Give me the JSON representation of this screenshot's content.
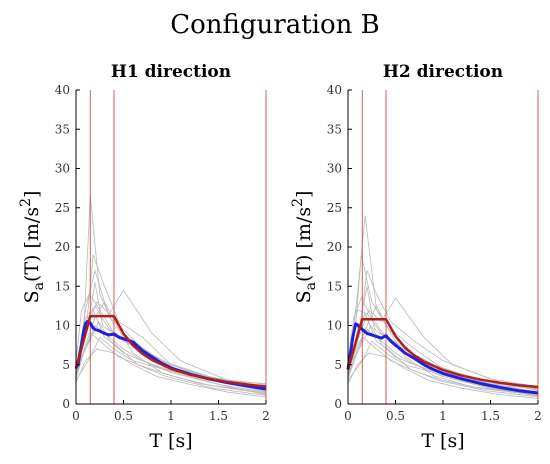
{
  "figure": {
    "title": "Configuration B"
  },
  "colors": {
    "records": "#b9b9b9",
    "mean": "#1f1fe0",
    "target": "#b21e1e",
    "period_bounds": "#d94a3a"
  },
  "chart_data": [
    {
      "type": "line",
      "title": "H1 direction",
      "xlabel": "T [s]",
      "ylabel": "S_a(T) [m/s^2]",
      "xlim": [
        0,
        2
      ],
      "ylim": [
        0,
        40
      ],
      "xticks": [
        0,
        0.5,
        1,
        1.5,
        2
      ],
      "xtick_labels": [
        "0",
        "0.5",
        "1",
        "1.5",
        "2"
      ],
      "yticks": [
        0,
        5,
        10,
        15,
        20,
        25,
        30,
        35,
        40
      ],
      "ytick_labels": [
        "0",
        "5",
        "10",
        "15",
        "20",
        "25",
        "30",
        "35",
        "40"
      ],
      "grid": false,
      "legend": "none",
      "vertical_lines": [
        0.15,
        0.4,
        2.0
      ],
      "series": [
        {
          "role": "target",
          "x": [
            0,
            0.15,
            0.4,
            0.5,
            0.6,
            0.7,
            0.8,
            1.0,
            1.2,
            1.4,
            1.6,
            1.8,
            2.0
          ],
          "y": [
            4.5,
            11.2,
            11.2,
            8.96,
            7.47,
            6.4,
            5.6,
            4.48,
            3.73,
            3.2,
            2.8,
            2.49,
            2.24
          ]
        },
        {
          "role": "mean",
          "x": [
            0,
            0.02,
            0.05,
            0.08,
            0.1,
            0.12,
            0.15,
            0.18,
            0.2,
            0.25,
            0.3,
            0.35,
            0.4,
            0.45,
            0.5,
            0.6,
            0.7,
            0.8,
            0.9,
            1.0,
            1.2,
            1.4,
            1.6,
            1.8,
            2.0
          ],
          "y": [
            4.6,
            5.0,
            7.0,
            9.2,
            10.2,
            10.5,
            10.3,
            9.7,
            9.5,
            9.3,
            9.0,
            8.8,
            8.9,
            8.5,
            8.3,
            7.9,
            6.8,
            6.0,
            5.2,
            4.6,
            3.8,
            3.2,
            2.7,
            2.3,
            1.9
          ]
        }
      ],
      "records": [
        {
          "x": [
            0,
            0.1,
            0.2,
            0.35,
            0.5,
            0.7,
            1.0,
            1.5,
            2.0
          ],
          "y": [
            4.0,
            12.0,
            17.0,
            11.0,
            9.5,
            7.0,
            5.0,
            3.0,
            2.0
          ]
        },
        {
          "x": [
            0,
            0.08,
            0.15,
            0.25,
            0.4,
            0.6,
            0.9,
            1.4,
            2.0
          ],
          "y": [
            3.5,
            9.0,
            26.5,
            14.0,
            10.0,
            8.0,
            5.5,
            3.5,
            2.2
          ]
        },
        {
          "x": [
            0,
            0.1,
            0.18,
            0.3,
            0.45,
            0.7,
            1.0,
            1.5,
            2.0
          ],
          "y": [
            4.5,
            8.5,
            19.0,
            15.0,
            10.5,
            8.5,
            5.0,
            2.8,
            1.8
          ]
        },
        {
          "x": [
            0,
            0.12,
            0.22,
            0.35,
            0.5,
            0.8,
            1.1,
            1.6,
            2.0
          ],
          "y": [
            3.8,
            10.0,
            13.0,
            11.5,
            14.5,
            9.0,
            5.5,
            3.0,
            2.0
          ]
        },
        {
          "x": [
            0,
            0.1,
            0.2,
            0.3,
            0.5,
            0.7,
            1.0,
            1.5,
            2.0
          ],
          "y": [
            4.2,
            7.0,
            10.0,
            9.0,
            7.0,
            5.5,
            4.0,
            2.5,
            1.5
          ]
        },
        {
          "x": [
            0,
            0.15,
            0.25,
            0.4,
            0.6,
            0.9,
            1.2,
            1.6,
            2.0
          ],
          "y": [
            3.0,
            6.0,
            8.5,
            7.0,
            5.5,
            4.5,
            3.5,
            2.2,
            1.2
          ]
        },
        {
          "x": [
            0,
            0.1,
            0.2,
            0.35,
            0.55,
            0.8,
            1.1,
            1.5,
            2.0
          ],
          "y": [
            5.0,
            11.0,
            12.5,
            9.5,
            8.0,
            6.0,
            4.0,
            2.8,
            1.6
          ]
        },
        {
          "x": [
            0,
            0.08,
            0.16,
            0.3,
            0.45,
            0.7,
            1.0,
            1.4,
            2.0
          ],
          "y": [
            3.2,
            6.5,
            9.0,
            7.5,
            6.0,
            4.8,
            3.6,
            2.4,
            1.3
          ]
        },
        {
          "x": [
            0,
            0.12,
            0.2,
            0.28,
            0.5,
            0.75,
            1.05,
            1.5,
            2.0
          ],
          "y": [
            4.0,
            9.5,
            15.5,
            10.0,
            8.0,
            6.5,
            4.5,
            3.2,
            2.5
          ]
        },
        {
          "x": [
            0,
            0.1,
            0.22,
            0.4,
            0.6,
            0.85,
            1.2,
            1.6,
            2.0
          ],
          "y": [
            2.8,
            5.5,
            7.0,
            6.5,
            5.0,
            3.5,
            2.5,
            1.5,
            0.9
          ]
        },
        {
          "x": [
            0,
            0.06,
            0.14,
            0.25,
            0.4,
            0.65,
            0.95,
            1.4,
            2.0
          ],
          "y": [
            5.5,
            12.0,
            14.0,
            12.0,
            9.0,
            7.0,
            4.5,
            3.0,
            2.3
          ]
        },
        {
          "x": [
            0,
            0.1,
            0.2,
            0.3,
            0.45,
            0.6,
            0.9,
            1.3,
            2.0
          ],
          "y": [
            3.6,
            7.5,
            11.0,
            13.0,
            9.5,
            6.5,
            4.0,
            2.6,
            1.4
          ]
        },
        {
          "x": [
            0,
            0.14,
            0.24,
            0.36,
            0.5,
            0.7,
            1.0,
            1.5,
            2.0
          ],
          "y": [
            4.8,
            8.0,
            10.5,
            8.0,
            6.5,
            5.5,
            4.2,
            3.0,
            2.6
          ]
        },
        {
          "x": [
            0,
            0.1,
            0.18,
            0.3,
            0.42,
            0.65,
            0.95,
            1.45,
            2.0
          ],
          "y": [
            3.3,
            10.5,
            12.0,
            8.5,
            7.5,
            5.0,
            3.5,
            2.0,
            1.1
          ]
        }
      ]
    },
    {
      "type": "line",
      "title": "H2 direction",
      "xlabel": "T [s]",
      "ylabel": "S_a(T) [m/s^2]",
      "xlim": [
        0,
        2
      ],
      "ylim": [
        0,
        40
      ],
      "xticks": [
        0,
        0.5,
        1,
        1.5,
        2
      ],
      "xtick_labels": [
        "0",
        "0.5",
        "1",
        "1.5",
        "2"
      ],
      "yticks": [
        0,
        5,
        10,
        15,
        20,
        25,
        30,
        35,
        40
      ],
      "ytick_labels": [
        "0",
        "5",
        "10",
        "15",
        "20",
        "25",
        "30",
        "35",
        "40"
      ],
      "grid": false,
      "legend": "none",
      "vertical_lines": [
        0.15,
        0.4,
        2.0
      ],
      "series": [
        {
          "role": "target",
          "x": [
            0,
            0.15,
            0.4,
            0.5,
            0.6,
            0.7,
            0.8,
            1.0,
            1.2,
            1.4,
            1.6,
            1.8,
            2.0
          ],
          "y": [
            4.4,
            10.8,
            10.8,
            8.64,
            7.2,
            6.17,
            5.4,
            4.32,
            3.6,
            3.09,
            2.7,
            2.4,
            2.16
          ]
        },
        {
          "role": "mean",
          "x": [
            0,
            0.02,
            0.05,
            0.08,
            0.1,
            0.12,
            0.15,
            0.18,
            0.2,
            0.25,
            0.3,
            0.35,
            0.4,
            0.45,
            0.5,
            0.6,
            0.7,
            0.8,
            0.9,
            1.0,
            1.2,
            1.4,
            1.6,
            1.8,
            2.0
          ],
          "y": [
            4.4,
            6.0,
            8.5,
            10.2,
            10.1,
            9.8,
            9.5,
            9.2,
            9.0,
            8.8,
            8.6,
            8.4,
            8.7,
            8.0,
            7.5,
            6.5,
            5.8,
            5.0,
            4.4,
            3.9,
            3.2,
            2.6,
            2.1,
            1.7,
            1.4
          ]
        }
      ],
      "records": [
        {
          "x": [
            0,
            0.1,
            0.18,
            0.3,
            0.5,
            0.7,
            1.0,
            1.5,
            2.0
          ],
          "y": [
            4.0,
            14.0,
            24.0,
            12.0,
            9.0,
            7.0,
            4.5,
            2.8,
            1.8
          ]
        },
        {
          "x": [
            0,
            0.08,
            0.14,
            0.25,
            0.4,
            0.6,
            0.9,
            1.4,
            2.0
          ],
          "y": [
            3.8,
            10.0,
            19.0,
            13.0,
            10.0,
            7.0,
            5.0,
            3.0,
            2.0
          ]
        },
        {
          "x": [
            0,
            0.12,
            0.2,
            0.3,
            0.45,
            0.7,
            1.0,
            1.5,
            2.0
          ],
          "y": [
            4.5,
            9.0,
            17.0,
            14.0,
            10.5,
            8.0,
            5.5,
            3.2,
            2.2
          ]
        },
        {
          "x": [
            0,
            0.1,
            0.22,
            0.35,
            0.5,
            0.8,
            1.1,
            1.6,
            2.0
          ],
          "y": [
            3.6,
            8.0,
            12.0,
            10.5,
            13.5,
            8.5,
            5.0,
            2.8,
            1.7
          ]
        },
        {
          "x": [
            0,
            0.1,
            0.2,
            0.3,
            0.5,
            0.7,
            1.0,
            1.5,
            2.0
          ],
          "y": [
            4.2,
            7.5,
            9.5,
            8.5,
            6.5,
            5.0,
            3.5,
            2.0,
            1.2
          ]
        },
        {
          "x": [
            0,
            0.15,
            0.25,
            0.4,
            0.6,
            0.9,
            1.2,
            1.6,
            2.0
          ],
          "y": [
            3.0,
            5.5,
            8.0,
            6.5,
            5.0,
            4.0,
            3.0,
            1.8,
            1.0
          ]
        },
        {
          "x": [
            0,
            0.1,
            0.2,
            0.35,
            0.55,
            0.8,
            1.1,
            1.5,
            2.0
          ],
          "y": [
            5.0,
            12.0,
            11.5,
            9.0,
            7.5,
            5.5,
            3.8,
            2.6,
            1.5
          ]
        },
        {
          "x": [
            0,
            0.08,
            0.16,
            0.3,
            0.45,
            0.7,
            1.0,
            1.4,
            2.0
          ],
          "y": [
            3.2,
            6.0,
            8.5,
            7.0,
            5.5,
            4.2,
            3.0,
            2.0,
            1.1
          ]
        },
        {
          "x": [
            0,
            0.12,
            0.2,
            0.28,
            0.5,
            0.75,
            1.05,
            1.5,
            2.0
          ],
          "y": [
            4.0,
            10.0,
            15.0,
            9.5,
            7.5,
            6.0,
            4.0,
            2.8,
            2.0
          ]
        },
        {
          "x": [
            0,
            0.1,
            0.22,
            0.4,
            0.6,
            0.85,
            1.2,
            1.6,
            2.0
          ],
          "y": [
            2.6,
            5.0,
            6.5,
            6.0,
            4.5,
            3.0,
            2.0,
            1.2,
            0.7
          ]
        },
        {
          "x": [
            0,
            0.06,
            0.14,
            0.25,
            0.4,
            0.65,
            0.95,
            1.4,
            2.0
          ],
          "y": [
            5.5,
            11.0,
            13.5,
            11.0,
            8.5,
            6.5,
            4.0,
            2.6,
            1.9
          ]
        },
        {
          "x": [
            0,
            0.1,
            0.2,
            0.3,
            0.45,
            0.6,
            0.9,
            1.3,
            2.0
          ],
          "y": [
            3.5,
            7.0,
            10.0,
            12.5,
            9.0,
            6.0,
            3.6,
            2.2,
            1.2
          ]
        },
        {
          "x": [
            0,
            0.14,
            0.24,
            0.36,
            0.5,
            0.7,
            1.0,
            1.5,
            2.0
          ],
          "y": [
            4.6,
            7.5,
            10.0,
            7.5,
            6.0,
            5.0,
            3.8,
            2.6,
            2.2
          ]
        },
        {
          "x": [
            0,
            0.1,
            0.18,
            0.3,
            0.42,
            0.65,
            0.95,
            1.45,
            2.0
          ],
          "y": [
            3.2,
            9.5,
            11.5,
            8.0,
            7.0,
            4.5,
            3.0,
            1.7,
            0.9
          ]
        }
      ]
    }
  ]
}
